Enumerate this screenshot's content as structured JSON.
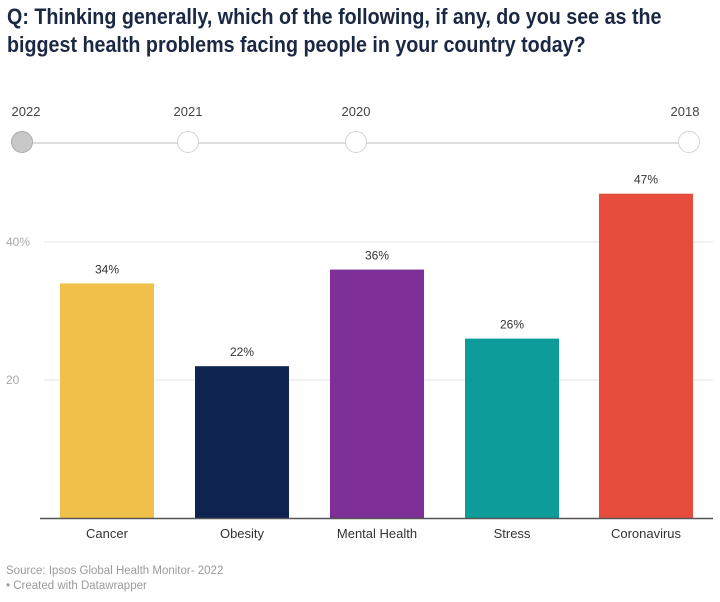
{
  "title": "Q: Thinking generally, which of the following, if any, do you see as the biggest health problems facing people in your country today?",
  "timeline": {
    "years": [
      "2022",
      "2021",
      "2020",
      "2018"
    ],
    "selected": "2022"
  },
  "chart_data": {
    "type": "bar",
    "categories": [
      "Cancer",
      "Obesity",
      "Mental Health",
      "Stress",
      "Coronavirus"
    ],
    "values": [
      34,
      22,
      36,
      26,
      47
    ],
    "data_labels": [
      "34%",
      "22%",
      "36%",
      "26%",
      "47%"
    ],
    "colors": [
      "#f0c04a",
      "#0f2350",
      "#7f2f98",
      "#0e9c9a",
      "#e84c3d"
    ],
    "yticks": [
      20,
      40
    ],
    "ytick_labels": [
      "20",
      "40%"
    ],
    "ylim": [
      0,
      50
    ],
    "grid": true,
    "xlabel": "",
    "ylabel": ""
  },
  "footer": {
    "source": "Source: Ipsos Global Health Monitor- 2022",
    "credit": "• Created with Datawrapper"
  }
}
